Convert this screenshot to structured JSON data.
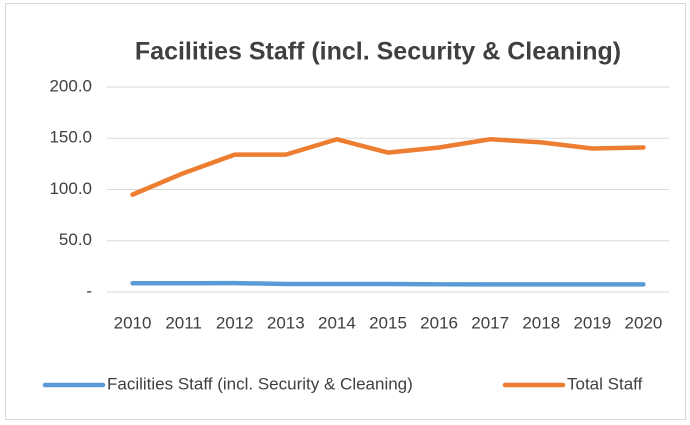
{
  "chart_data": {
    "type": "line",
    "title": "Facilities Staff (incl. Security & Cleaning)",
    "categories": [
      "2010",
      "2011",
      "2012",
      "2013",
      "2014",
      "2015",
      "2016",
      "2017",
      "2018",
      "2019",
      "2020"
    ],
    "series": [
      {
        "name": "Facilities Staff (incl. Security & Cleaning)",
        "color": "#5b9bd5",
        "values": [
          8.5,
          8.5,
          8.7,
          7.8,
          7.8,
          7.8,
          7.5,
          7.5,
          7.5,
          7.5,
          7.5
        ]
      },
      {
        "name": "Total Staff",
        "color": "#ed7d31",
        "values": [
          95,
          116,
          134,
          134,
          149,
          136,
          141,
          149,
          146,
          140,
          141
        ]
      }
    ],
    "ylim": [
      0,
      200
    ],
    "yticks": [
      {
        "value": 0,
        "label": "-"
      },
      {
        "value": 50,
        "label": "50.0"
      },
      {
        "value": 100,
        "label": "100.0"
      },
      {
        "value": 150,
        "label": "150.0"
      },
      {
        "value": 200,
        "label": "200.0"
      }
    ],
    "grid": true,
    "legend": "bottom"
  }
}
